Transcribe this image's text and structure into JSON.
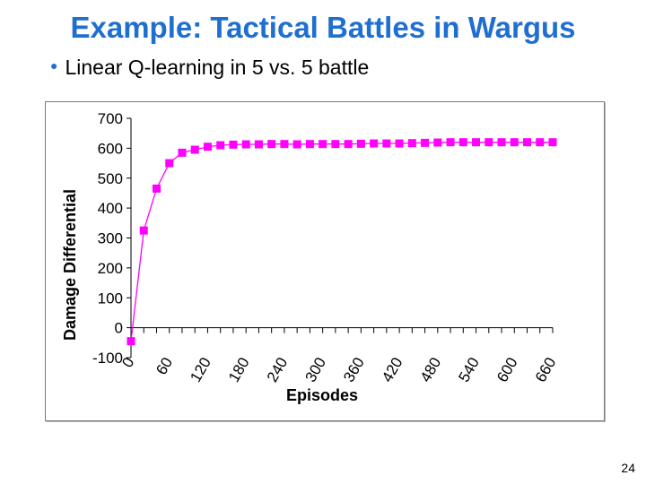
{
  "slide": {
    "title": "Example: Tactical Battles in Wargus",
    "bullet": "Linear Q-learning in 5 vs. 5 battle",
    "page_number": "24",
    "title_color": "#1f6fd1"
  },
  "chart_data": {
    "type": "line",
    "xlabel": "Episodes",
    "ylabel": "Damage Differential",
    "ylim": [
      -100,
      700
    ],
    "xlim": [
      0,
      660
    ],
    "yticks": [
      -100,
      0,
      100,
      200,
      300,
      400,
      500,
      600,
      700
    ],
    "xticks": [
      0,
      60,
      120,
      180,
      240,
      300,
      360,
      420,
      480,
      540,
      600,
      660
    ],
    "grid": false,
    "legend": "none",
    "marker": "square",
    "series_color": "#ff00ff",
    "series": [
      {
        "x": [
          0,
          20,
          40,
          60,
          80,
          100,
          120,
          140,
          160,
          180,
          200,
          220,
          240,
          260,
          280,
          300,
          320,
          340,
          360,
          380,
          400,
          420,
          440,
          460,
          480,
          500,
          520,
          540,
          560,
          580,
          600,
          620,
          640,
          660
        ],
        "values": [
          -45,
          325,
          465,
          550,
          585,
          595,
          605,
          610,
          612,
          613,
          613,
          614,
          614,
          613,
          614,
          614,
          614,
          614,
          615,
          616,
          616,
          616,
          617,
          618,
          619,
          620,
          620,
          620,
          620,
          620,
          620,
          620,
          620,
          620
        ]
      }
    ]
  }
}
